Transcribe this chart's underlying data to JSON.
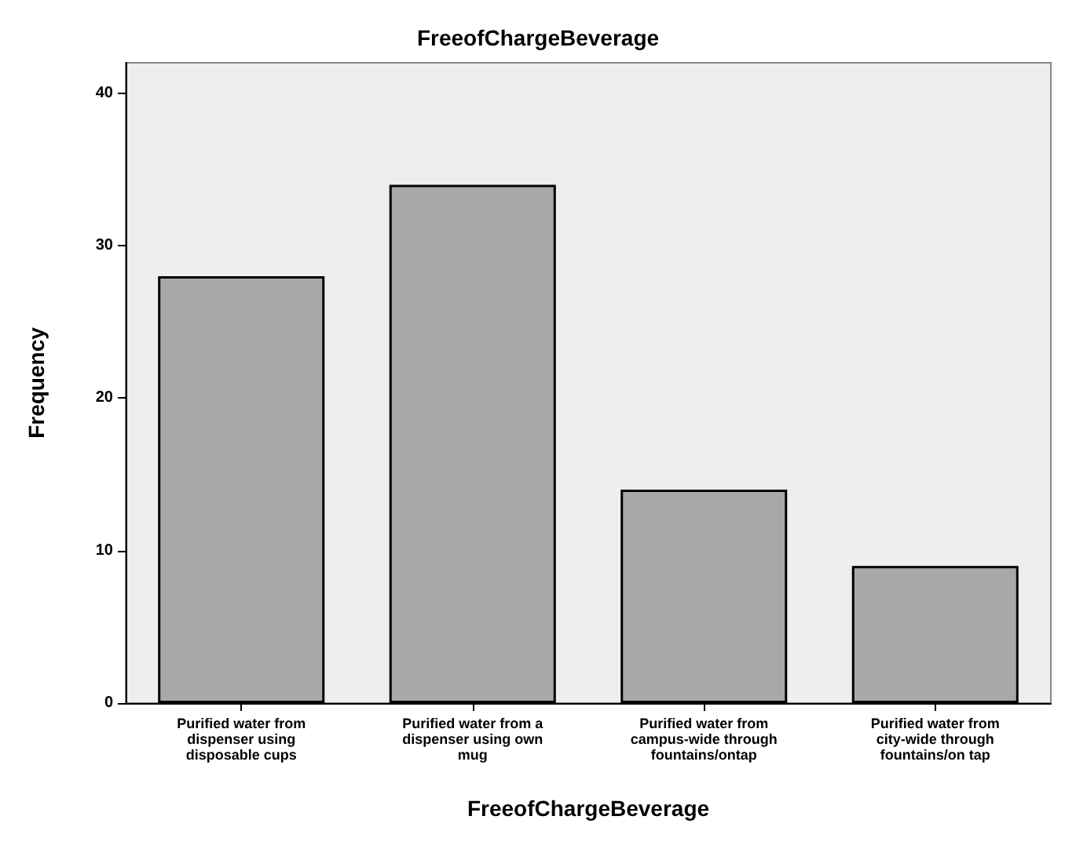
{
  "chart_data": {
    "type": "bar",
    "title": "FreeofChargeBeverage",
    "xlabel": "FreeofChargeBeverage",
    "ylabel": "Frequency",
    "categories": [
      "Purified water from dispenser using disposable cups",
      "Purified water from a dispenser using own mug",
      "Purified water from campus-wide through fountains/ontap",
      "Purified water from city-wide through fountains/on tap"
    ],
    "values": [
      28,
      34,
      14,
      9
    ],
    "color": "#a8a8a8",
    "ylim": [
      0,
      42
    ],
    "yticks": [
      0,
      10,
      20,
      30,
      40
    ],
    "grid": false
  }
}
